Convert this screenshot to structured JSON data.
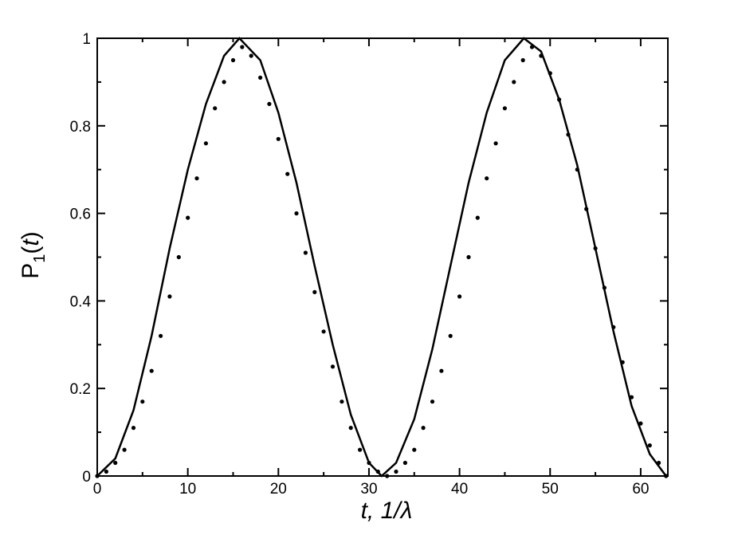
{
  "chart_data": {
    "type": "line",
    "title": "",
    "xlabel": "t, 1/λ",
    "ylabel": "P1(t)",
    "xlim": [
      0,
      63
    ],
    "ylim": [
      0,
      1
    ],
    "x_ticks": [
      0,
      10,
      20,
      30,
      40,
      50,
      60
    ],
    "x_tick_labels": [
      "0",
      "10",
      "20",
      "30",
      "40",
      "50",
      "60"
    ],
    "y_ticks": [
      0,
      0.2,
      0.4,
      0.6,
      0.8,
      1
    ],
    "y_tick_labels": [
      "0",
      "0.2",
      "0.4",
      "0.6",
      "0.8",
      "1"
    ],
    "grid": false,
    "series": [
      {
        "style": "solid",
        "color": "#000000",
        "x": [
          0,
          2,
          4,
          6,
          8,
          10,
          12,
          14,
          15.7,
          18,
          20,
          22,
          24,
          26,
          28,
          30,
          31.4,
          33,
          35,
          37,
          39,
          41,
          43,
          45,
          47.1,
          49,
          51,
          53,
          55,
          57,
          59,
          61,
          62.8
        ],
        "y": [
          0.0,
          0.04,
          0.15,
          0.32,
          0.52,
          0.7,
          0.85,
          0.96,
          1.0,
          0.95,
          0.83,
          0.67,
          0.48,
          0.3,
          0.14,
          0.03,
          0.0,
          0.03,
          0.13,
          0.29,
          0.48,
          0.67,
          0.83,
          0.95,
          1.0,
          0.97,
          0.86,
          0.71,
          0.52,
          0.33,
          0.16,
          0.05,
          0.0
        ]
      },
      {
        "style": "dotted",
        "color": "#000000",
        "x": [
          0,
          1,
          2,
          3,
          4,
          5,
          6,
          7,
          8,
          9,
          10,
          11,
          12,
          13,
          14,
          15,
          16,
          17,
          18,
          19,
          20,
          21,
          22,
          23,
          24,
          25,
          26,
          27,
          28,
          29,
          30,
          31,
          32,
          33,
          34,
          35,
          36,
          37,
          38,
          39,
          40,
          41,
          42,
          43,
          44,
          45,
          46,
          47,
          48,
          49,
          50,
          51,
          52,
          53,
          54,
          55,
          56,
          57,
          58,
          59,
          60,
          61,
          62,
          62.8
        ],
        "y": [
          0.0,
          0.01,
          0.03,
          0.06,
          0.11,
          0.17,
          0.24,
          0.32,
          0.41,
          0.5,
          0.59,
          0.68,
          0.76,
          0.84,
          0.9,
          0.95,
          0.98,
          0.96,
          0.91,
          0.85,
          0.77,
          0.69,
          0.6,
          0.51,
          0.42,
          0.33,
          0.25,
          0.17,
          0.11,
          0.06,
          0.03,
          0.01,
          0.0,
          0.01,
          0.03,
          0.06,
          0.11,
          0.17,
          0.24,
          0.32,
          0.41,
          0.5,
          0.59,
          0.68,
          0.76,
          0.84,
          0.9,
          0.95,
          0.98,
          0.96,
          0.92,
          0.86,
          0.78,
          0.7,
          0.61,
          0.52,
          0.43,
          0.34,
          0.26,
          0.18,
          0.12,
          0.07,
          0.03,
          0.0
        ]
      }
    ]
  }
}
